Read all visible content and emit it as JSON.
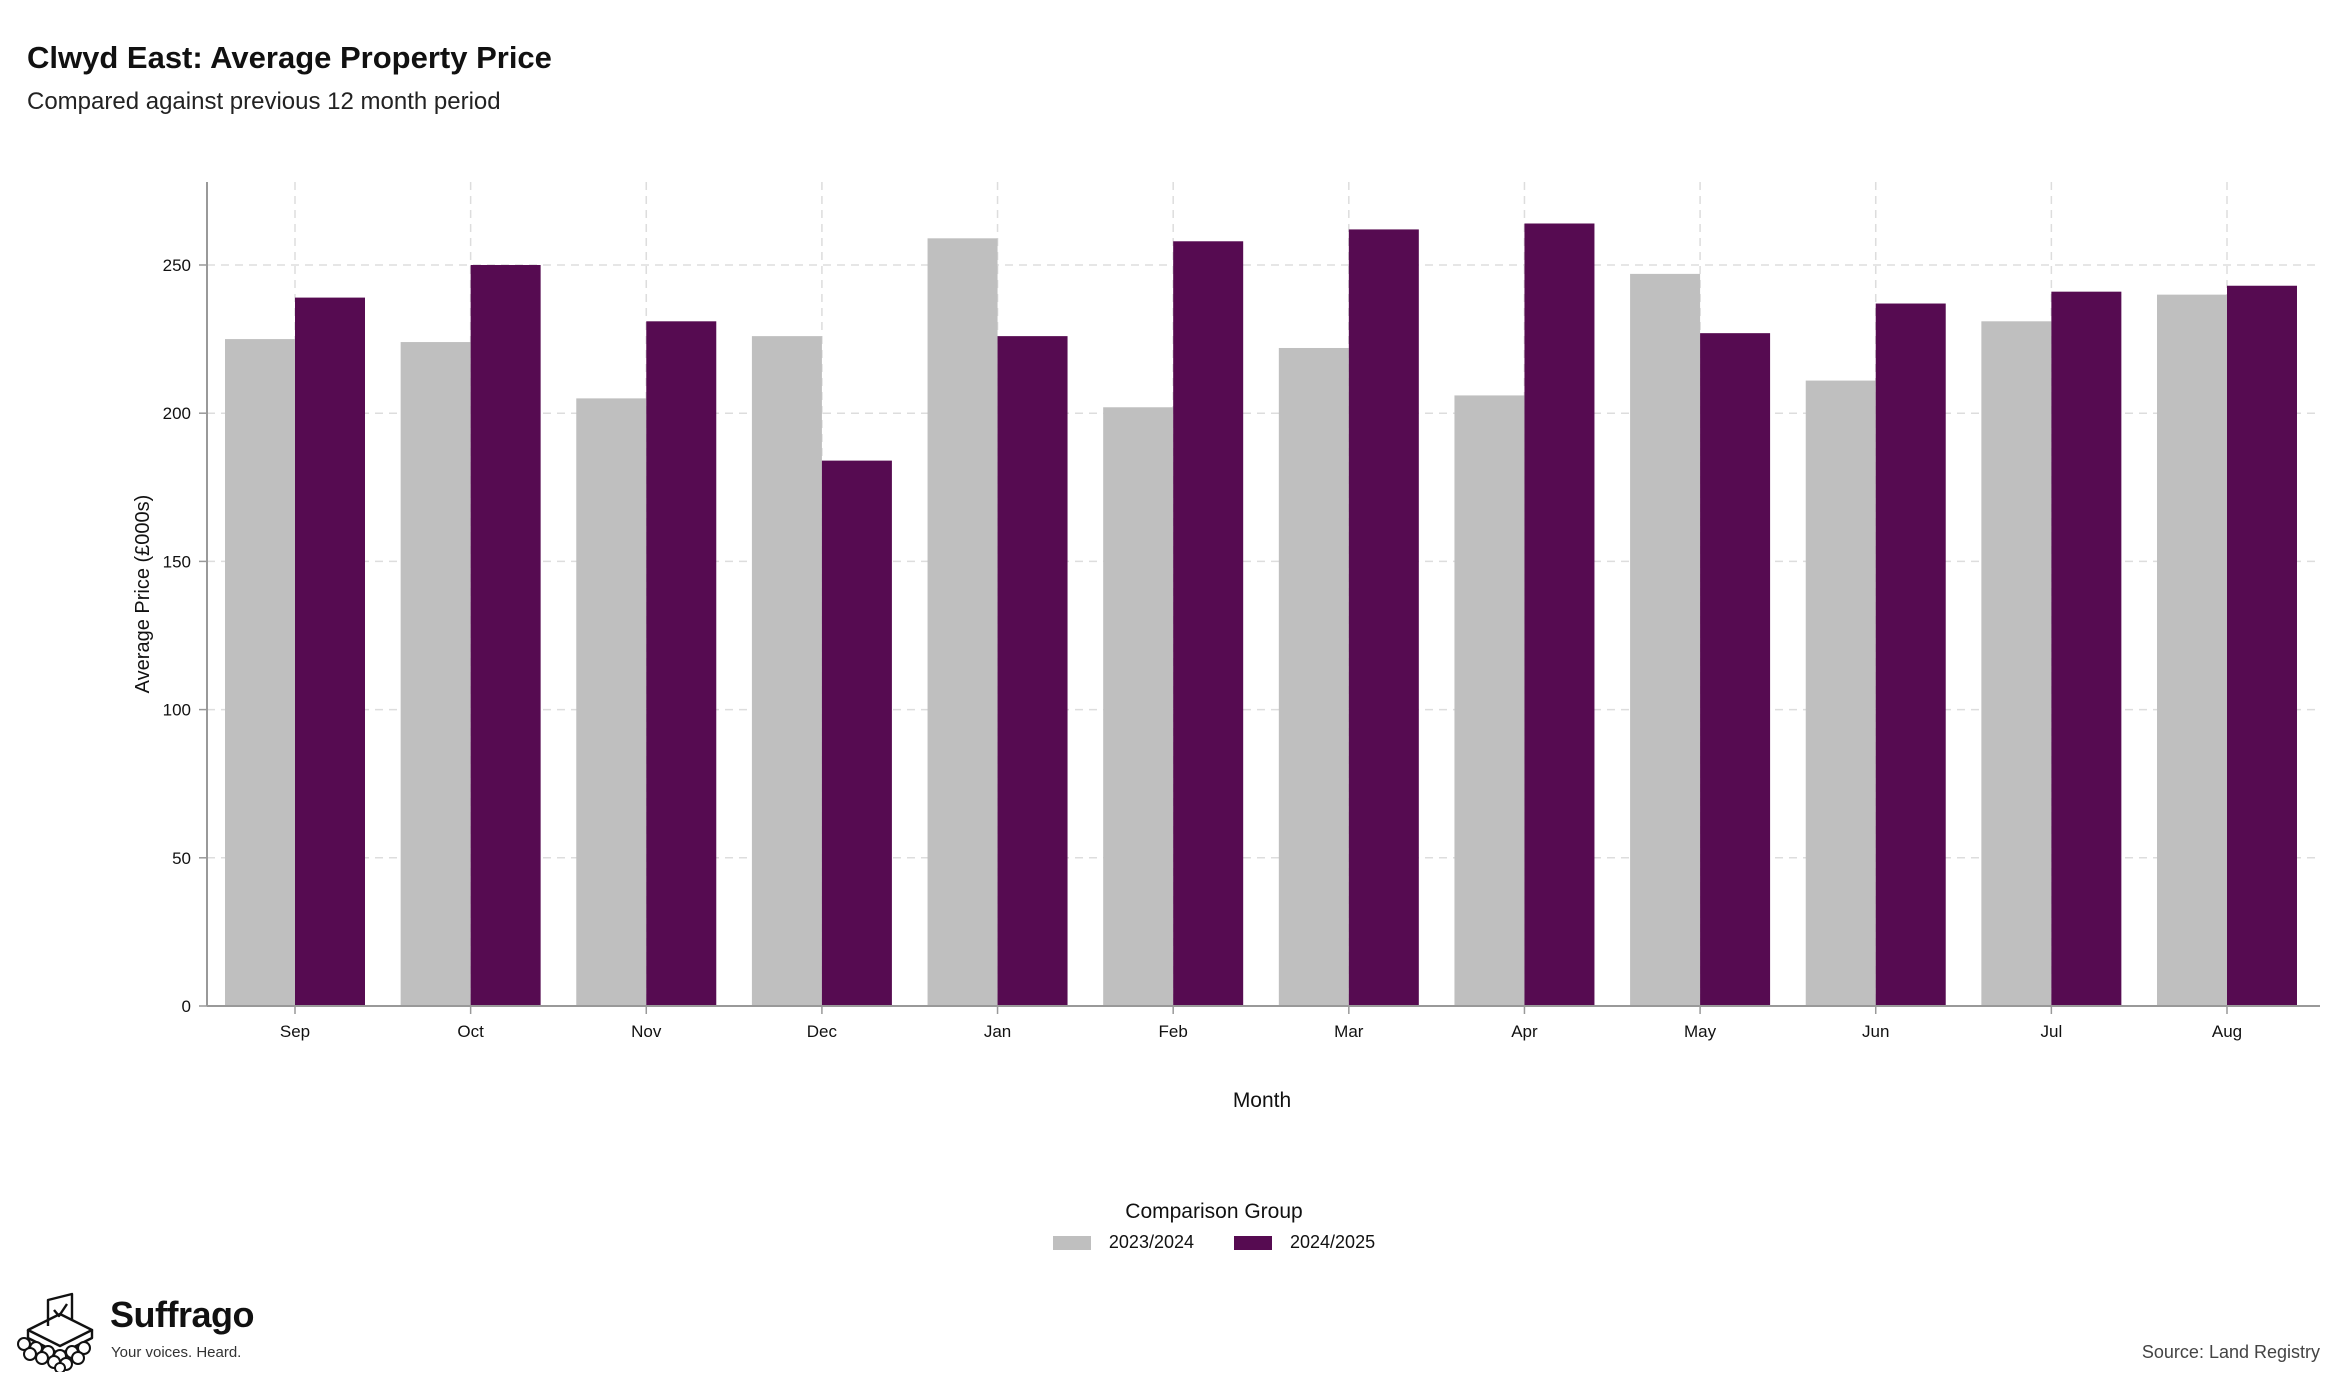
{
  "header": {
    "title": "Clwyd East: Average Property Price",
    "subtitle": "Compared against previous 12 month period"
  },
  "chart_data": {
    "type": "bar",
    "title": "Clwyd East: Average Property Price",
    "subtitle": "Compared against previous 12 month period",
    "xlabel": "Month",
    "ylabel": "Average Price (£000s)",
    "ylim": [
      0,
      278
    ],
    "yticks": [
      0,
      50,
      100,
      150,
      200,
      250
    ],
    "grid": true,
    "legend_position": "bottom",
    "legend_title": "Comparison Group",
    "categories": [
      "Sep",
      "Oct",
      "Nov",
      "Dec",
      "Jan",
      "Feb",
      "Mar",
      "Apr",
      "May",
      "Jun",
      "Jul",
      "Aug"
    ],
    "series": [
      {
        "name": "2023/2024",
        "color": "#bfbfbf",
        "values": [
          225,
          224,
          205,
          226,
          259,
          202,
          222,
          206,
          247,
          211,
          231,
          240
        ]
      },
      {
        "name": "2024/2025",
        "color": "#560b51",
        "values": [
          239,
          250,
          231,
          184,
          226,
          258,
          262,
          264,
          227,
          237,
          241,
          243
        ]
      }
    ]
  },
  "branding": {
    "name": "Suffrago",
    "tagline": "Your voices. Heard.",
    "logo_icon": "ballot-box-icon"
  },
  "footer": {
    "source": "Source: Land Registry"
  }
}
